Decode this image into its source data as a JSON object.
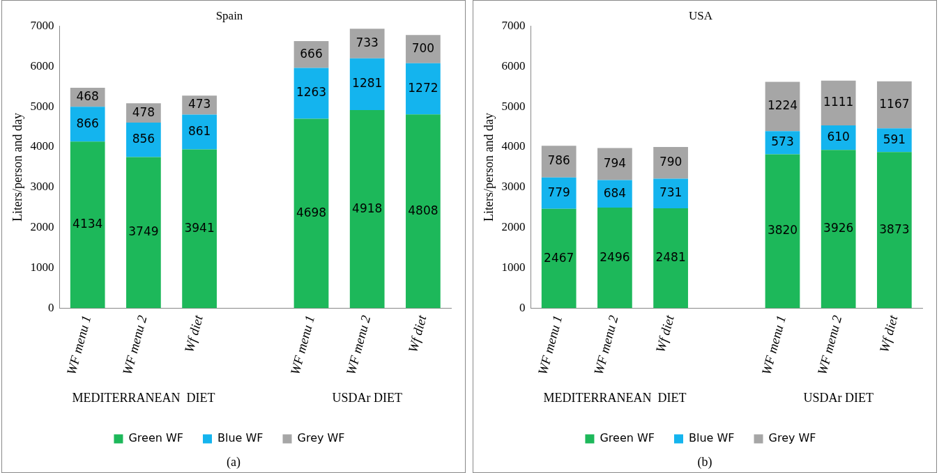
{
  "chart_data": [
    {
      "type": "bar",
      "title": "Spain",
      "ylabel": "Liters/person and day",
      "stacked": true,
      "data_labels": true,
      "legend": "bottom",
      "grid": false,
      "categories": [
        "WF menu 1",
        "WF menu 2",
        "Wf diet",
        null,
        "WF menu 1",
        "WF menu 2",
        "Wf diet"
      ],
      "series": [
        {
          "name": "Green WF",
          "color": "#1db85a",
          "values": [
            4134,
            3749,
            3941,
            null,
            4698,
            4918,
            4808
          ]
        },
        {
          "name": "Blue WF",
          "color": "#14b4ee",
          "values": [
            866,
            856,
            861,
            null,
            1263,
            1281,
            1272
          ]
        },
        {
          "name": "Grey WF",
          "color": "#a6a6a6",
          "values": [
            468,
            478,
            473,
            null,
            666,
            733,
            700
          ]
        }
      ],
      "ylim": [
        0,
        7000
      ],
      "yticks": [
        0,
        1000,
        2000,
        3000,
        4000,
        5000,
        6000,
        7000
      ],
      "annotations": [
        "MEDITERRANEAN  DIET",
        "USDAr DIET",
        "(a)"
      ]
    },
    {
      "type": "bar",
      "title": "USA",
      "ylabel": "Liters/person and day",
      "stacked": true,
      "data_labels": true,
      "legend": "bottom",
      "grid": false,
      "categories": [
        "WF menu 1",
        "WF menu 2",
        "Wf diet",
        null,
        "WF menu 1",
        "WF menu 2",
        "Wf diet"
      ],
      "series": [
        {
          "name": "Green WF",
          "color": "#1db85a",
          "values": [
            2467,
            2496,
            2481,
            null,
            3820,
            3926,
            3873
          ]
        },
        {
          "name": "Blue WF",
          "color": "#14b4ee",
          "values": [
            779,
            684,
            731,
            null,
            573,
            610,
            591
          ]
        },
        {
          "name": "Grey WF",
          "color": "#a6a6a6",
          "values": [
            786,
            794,
            790,
            null,
            1224,
            1111,
            1167
          ]
        }
      ],
      "ylim": [
        0,
        7000
      ],
      "yticks": [
        0,
        1000,
        2000,
        3000,
        4000,
        5000,
        6000,
        7000
      ],
      "annotations": [
        "MEDITERRANEAN  DIET",
        "USDAr DIET",
        "(b)"
      ]
    }
  ]
}
